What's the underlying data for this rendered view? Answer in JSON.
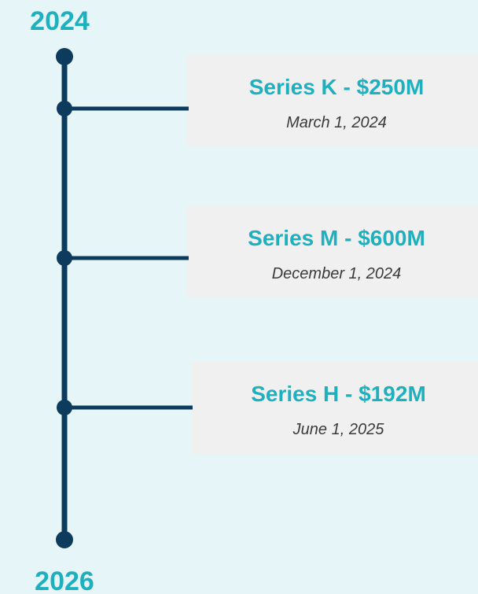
{
  "timeline": {
    "start": "2024",
    "end": "2026",
    "events": [
      {
        "title": "Series K - $250M",
        "date": "March 1, 2024"
      },
      {
        "title": "Series M - $600M",
        "date": "December 1, 2024"
      },
      {
        "title": "Series H - $192M",
        "date": "June 1, 2025"
      }
    ]
  }
}
